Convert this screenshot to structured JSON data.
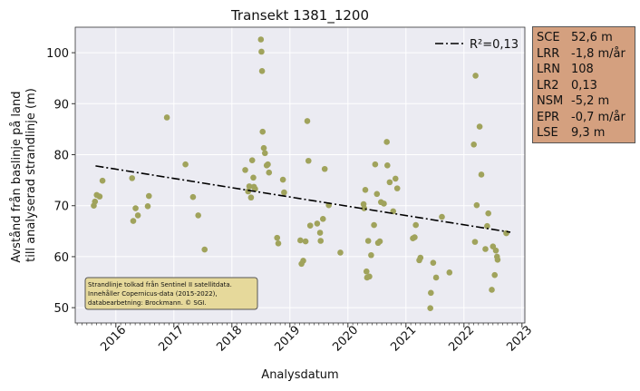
{
  "chart_data": {
    "type": "scatter",
    "title": "Transekt 1381_1200",
    "xlabel": "Analysdatum",
    "ylabel_lines": [
      "Avstånd från baslinje på land",
      "till analyserad strandlinje (m)"
    ],
    "xlim": [
      2015.3,
      2023.05
    ],
    "ylim": [
      47,
      105
    ],
    "x_ticks": [
      2016,
      2017,
      2018,
      2019,
      2020,
      2021,
      2022,
      2023
    ],
    "y_ticks": [
      50,
      60,
      70,
      80,
      90,
      100
    ],
    "grid": true,
    "point_color": "#a0a35c",
    "trend": {
      "label": "R²=0,13",
      "x": [
        2015.65,
        2022.8
      ],
      "y": [
        77.8,
        64.8
      ],
      "style": "dash-dot",
      "color": "#000000"
    },
    "legend_position": "top-right",
    "points": [
      {
        "x": 2015.62,
        "y": 70.0
      },
      {
        "x": 2015.64,
        "y": 70.8
      },
      {
        "x": 2015.67,
        "y": 72.1
      },
      {
        "x": 2015.72,
        "y": 71.8
      },
      {
        "x": 2015.77,
        "y": 74.9
      },
      {
        "x": 2016.28,
        "y": 75.4
      },
      {
        "x": 2016.3,
        "y": 67.0
      },
      {
        "x": 2016.34,
        "y": 69.5
      },
      {
        "x": 2016.38,
        "y": 68.1
      },
      {
        "x": 2016.55,
        "y": 69.9
      },
      {
        "x": 2016.57,
        "y": 71.9
      },
      {
        "x": 2016.88,
        "y": 87.3
      },
      {
        "x": 2017.2,
        "y": 78.1
      },
      {
        "x": 2017.33,
        "y": 71.7
      },
      {
        "x": 2017.42,
        "y": 68.1
      },
      {
        "x": 2017.53,
        "y": 61.4
      },
      {
        "x": 2018.23,
        "y": 77.0
      },
      {
        "x": 2018.28,
        "y": 72.8
      },
      {
        "x": 2018.3,
        "y": 73.8
      },
      {
        "x": 2018.33,
        "y": 71.6
      },
      {
        "x": 2018.35,
        "y": 78.9
      },
      {
        "x": 2018.37,
        "y": 75.5
      },
      {
        "x": 2018.38,
        "y": 73.7
      },
      {
        "x": 2018.4,
        "y": 73.3
      },
      {
        "x": 2018.5,
        "y": 102.6
      },
      {
        "x": 2018.51,
        "y": 100.2
      },
      {
        "x": 2018.52,
        "y": 96.4
      },
      {
        "x": 2018.53,
        "y": 84.5
      },
      {
        "x": 2018.55,
        "y": 81.3
      },
      {
        "x": 2018.57,
        "y": 80.3
      },
      {
        "x": 2018.6,
        "y": 77.9
      },
      {
        "x": 2018.62,
        "y": 78.1
      },
      {
        "x": 2018.64,
        "y": 76.5
      },
      {
        "x": 2018.78,
        "y": 63.7
      },
      {
        "x": 2018.8,
        "y": 62.6
      },
      {
        "x": 2018.88,
        "y": 75.1
      },
      {
        "x": 2018.9,
        "y": 72.6
      },
      {
        "x": 2019.18,
        "y": 63.2
      },
      {
        "x": 2019.2,
        "y": 58.6
      },
      {
        "x": 2019.23,
        "y": 59.2
      },
      {
        "x": 2019.27,
        "y": 63.0
      },
      {
        "x": 2019.3,
        "y": 86.6
      },
      {
        "x": 2019.32,
        "y": 78.8
      },
      {
        "x": 2019.35,
        "y": 66.1
      },
      {
        "x": 2019.47,
        "y": 66.5
      },
      {
        "x": 2019.52,
        "y": 64.7
      },
      {
        "x": 2019.53,
        "y": 63.1
      },
      {
        "x": 2019.57,
        "y": 67.4
      },
      {
        "x": 2019.6,
        "y": 77.2
      },
      {
        "x": 2019.67,
        "y": 70.1
      },
      {
        "x": 2019.87,
        "y": 60.8
      },
      {
        "x": 2020.27,
        "y": 70.3
      },
      {
        "x": 2020.28,
        "y": 69.5
      },
      {
        "x": 2020.3,
        "y": 73.1
      },
      {
        "x": 2020.32,
        "y": 57.1
      },
      {
        "x": 2020.33,
        "y": 55.9
      },
      {
        "x": 2020.35,
        "y": 63.1
      },
      {
        "x": 2020.37,
        "y": 56.1
      },
      {
        "x": 2020.4,
        "y": 60.3
      },
      {
        "x": 2020.45,
        "y": 66.2
      },
      {
        "x": 2020.47,
        "y": 78.1
      },
      {
        "x": 2020.5,
        "y": 72.3
      },
      {
        "x": 2020.52,
        "y": 62.7
      },
      {
        "x": 2020.55,
        "y": 63.0
      },
      {
        "x": 2020.57,
        "y": 70.7
      },
      {
        "x": 2020.62,
        "y": 70.4
      },
      {
        "x": 2020.67,
        "y": 82.5
      },
      {
        "x": 2020.68,
        "y": 77.9
      },
      {
        "x": 2020.72,
        "y": 74.6
      },
      {
        "x": 2020.78,
        "y": 68.9
      },
      {
        "x": 2020.82,
        "y": 75.3
      },
      {
        "x": 2020.85,
        "y": 73.4
      },
      {
        "x": 2021.12,
        "y": 63.6
      },
      {
        "x": 2021.15,
        "y": 63.8
      },
      {
        "x": 2021.17,
        "y": 66.2
      },
      {
        "x": 2021.23,
        "y": 59.3
      },
      {
        "x": 2021.25,
        "y": 59.8
      },
      {
        "x": 2021.42,
        "y": 49.9
      },
      {
        "x": 2021.43,
        "y": 52.9
      },
      {
        "x": 2021.47,
        "y": 58.8
      },
      {
        "x": 2021.52,
        "y": 55.9
      },
      {
        "x": 2021.62,
        "y": 67.8
      },
      {
        "x": 2021.75,
        "y": 56.9
      },
      {
        "x": 2022.17,
        "y": 82.0
      },
      {
        "x": 2022.19,
        "y": 62.9
      },
      {
        "x": 2022.2,
        "y": 95.5
      },
      {
        "x": 2022.22,
        "y": 70.1
      },
      {
        "x": 2022.27,
        "y": 85.5
      },
      {
        "x": 2022.3,
        "y": 76.1
      },
      {
        "x": 2022.37,
        "y": 61.5
      },
      {
        "x": 2022.42,
        "y": 68.5
      },
      {
        "x": 2022.4,
        "y": 66.0
      },
      {
        "x": 2022.48,
        "y": 53.5
      },
      {
        "x": 2022.5,
        "y": 62.0
      },
      {
        "x": 2022.53,
        "y": 56.4
      },
      {
        "x": 2022.55,
        "y": 61.2
      },
      {
        "x": 2022.57,
        "y": 60.0
      },
      {
        "x": 2022.58,
        "y": 59.4
      },
      {
        "x": 2022.73,
        "y": 64.6
      }
    ],
    "annotation": [
      "Strandlinje tolkad från Sentinel II satellitdata.",
      "Innehåller Copernicus-data (2015-2022),",
      "databearbetning: Brockmann. © SGI."
    ]
  },
  "stats": [
    {
      "name": "SCE",
      "value": "52,6 m"
    },
    {
      "name": "LRR",
      "value": "-1,8 m/år"
    },
    {
      "name": "LRN",
      "value": "108"
    },
    {
      "name": "LR2",
      "value": "0,13"
    },
    {
      "name": "NSM",
      "value": "-5,2 m"
    },
    {
      "name": "EPR",
      "value": "-0,7 m/år"
    },
    {
      "name": "LSE",
      "value": "9,3 m"
    }
  ],
  "colors": {
    "plot_bg": "#ebebf2",
    "stats_bg": "#d4a07f",
    "annotation_bg": "#e6d99b"
  }
}
